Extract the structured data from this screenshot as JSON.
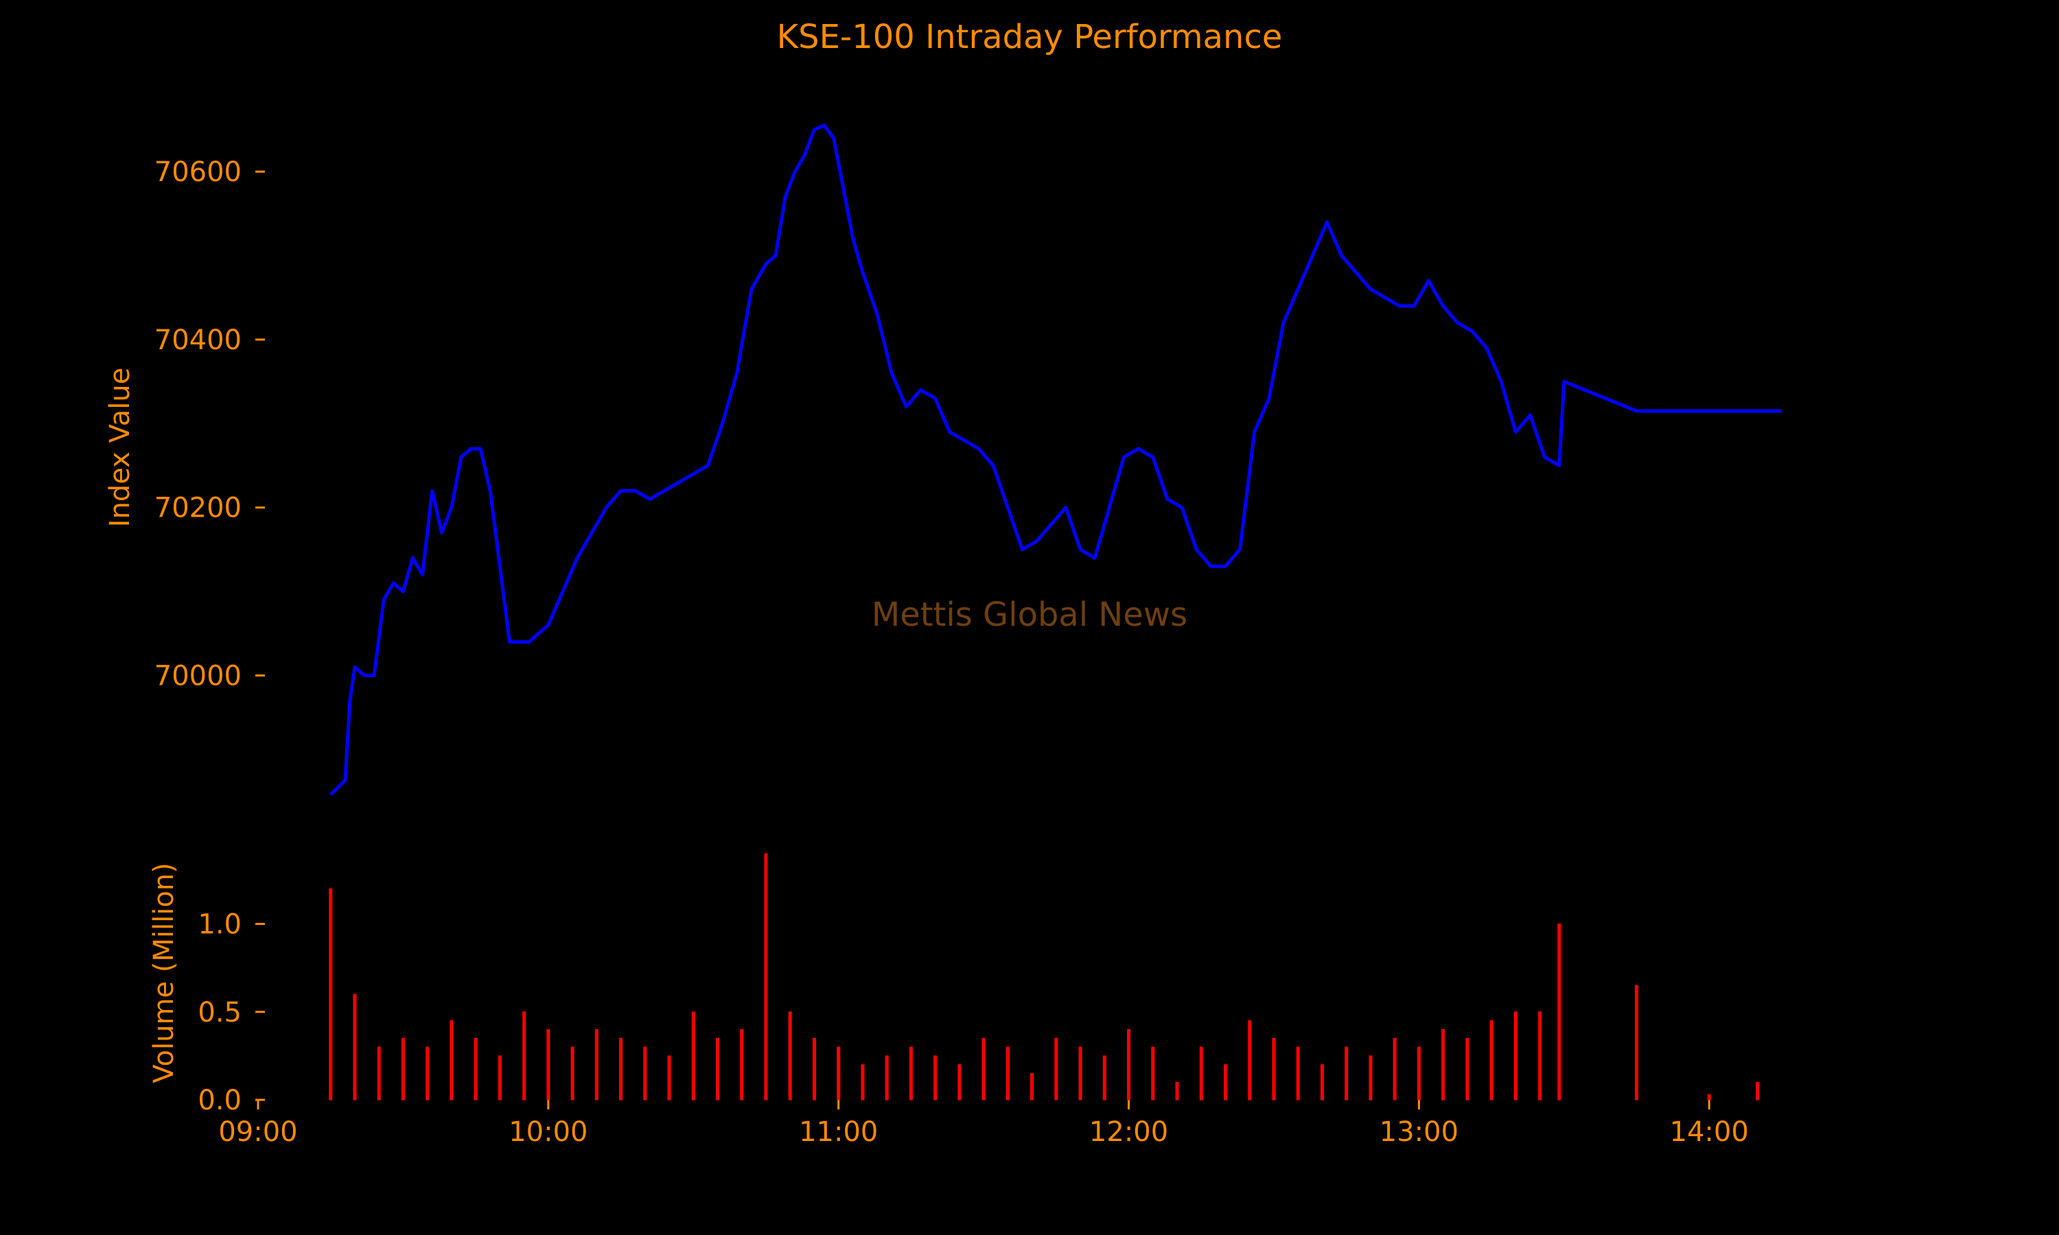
{
  "chart_data": {
    "type": "line",
    "title": "KSE-100 Intraday Performance",
    "watermark": "Mettis Global News",
    "colors": {
      "text": "#ff8c00",
      "price_line": "#0000ff",
      "volume_bars": "#ff0000",
      "background": "#000000"
    },
    "grid": false,
    "x_axis": {
      "type": "time",
      "range": [
        "09:00",
        "14:15"
      ],
      "tick_labels": [
        "09:00",
        "10:00",
        "11:00",
        "12:00",
        "13:00",
        "14:00"
      ]
    },
    "price_panel": {
      "ylabel": "Index Value",
      "ylim": [
        69855,
        70690
      ],
      "tick_values": [
        70000,
        70200,
        70400,
        70600
      ],
      "tick_labels": [
        "70000",
        "70200",
        "70400",
        "70600"
      ],
      "series": [
        {
          "x": [
            "09:15",
            "09:18",
            "09:19",
            "09:20",
            "09:22",
            "09:24",
            "09:26",
            "09:28",
            "09:30",
            "09:32",
            "09:34",
            "09:36",
            "09:38",
            "09:40",
            "09:42",
            "09:44",
            "09:46",
            "09:48",
            "09:50",
            "09:52",
            "09:54",
            "09:56",
            "09:58",
            "10:00",
            "10:03",
            "10:06",
            "10:09",
            "10:12",
            "10:15",
            "10:18",
            "10:21",
            "10:24",
            "10:27",
            "10:30",
            "10:33",
            "10:36",
            "10:39",
            "10:42",
            "10:45",
            "10:47",
            "10:49",
            "10:51",
            "10:53",
            "10:55",
            "10:57",
            "10:59",
            "11:01",
            "11:03",
            "11:05",
            "11:08",
            "11:11",
            "11:14",
            "11:17",
            "11:20",
            "11:23",
            "11:26",
            "11:29",
            "11:32",
            "11:35",
            "11:38",
            "11:41",
            "11:44",
            "11:47",
            "11:50",
            "11:53",
            "11:56",
            "11:59",
            "12:02",
            "12:05",
            "12:08",
            "12:11",
            "12:14",
            "12:17",
            "12:20",
            "12:23",
            "12:26",
            "12:29",
            "12:32",
            "12:35",
            "12:38",
            "12:41",
            "12:44",
            "12:47",
            "12:50",
            "12:53",
            "12:56",
            "12:59",
            "13:02",
            "13:05",
            "13:08",
            "13:11",
            "13:14",
            "13:17",
            "13:20",
            "13:23",
            "13:26",
            "13:29",
            "13:30",
            "13:45",
            "14:15"
          ],
          "y": [
            69858,
            69875,
            69970,
            70010,
            70000,
            70000,
            70090,
            70110,
            70100,
            70140,
            70120,
            70220,
            70170,
            70200,
            70260,
            70270,
            70270,
            70220,
            70130,
            70040,
            70040,
            70040,
            70050,
            70060,
            70100,
            70140,
            70170,
            70200,
            70220,
            70220,
            70210,
            70220,
            70230,
            70240,
            70250,
            70300,
            70360,
            70460,
            70490,
            70500,
            70570,
            70600,
            70620,
            70650,
            70655,
            70640,
            70580,
            70520,
            70480,
            70430,
            70360,
            70320,
            70340,
            70330,
            70290,
            70280,
            70270,
            70250,
            70200,
            70150,
            70160,
            70180,
            70200,
            70150,
            70140,
            70200,
            70260,
            70270,
            70260,
            70210,
            70200,
            70150,
            70130,
            70130,
            70150,
            70290,
            70330,
            70420,
            70460,
            70500,
            70540,
            70500,
            70480,
            70460,
            70450,
            70440,
            70440,
            70470,
            70440,
            70420,
            70410,
            70390,
            70350,
            70290,
            70310,
            70260,
            70250,
            70350,
            70315,
            70315
          ]
        }
      ]
    },
    "volume_panel": {
      "ylabel": "Volume (Million)",
      "ylim": [
        0.0,
        1.4
      ],
      "tick_values": [
        0.0,
        0.5,
        1.0
      ],
      "tick_labels": [
        "0.0",
        "0.5",
        "1.0"
      ],
      "series": [
        {
          "x": [
            "09:15",
            "09:20",
            "09:25",
            "09:30",
            "09:35",
            "09:40",
            "09:45",
            "09:50",
            "09:55",
            "10:00",
            "10:05",
            "10:10",
            "10:15",
            "10:20",
            "10:25",
            "10:30",
            "10:35",
            "10:40",
            "10:45",
            "10:50",
            "10:55",
            "11:00",
            "11:05",
            "11:10",
            "11:15",
            "11:20",
            "11:25",
            "11:30",
            "11:35",
            "11:40",
            "11:45",
            "11:50",
            "11:55",
            "12:00",
            "12:05",
            "12:10",
            "12:15",
            "12:20",
            "12:25",
            "12:30",
            "12:35",
            "12:40",
            "12:45",
            "12:50",
            "12:55",
            "13:00",
            "13:05",
            "13:10",
            "13:15",
            "13:20",
            "13:25",
            "13:29",
            "13:45",
            "14:00",
            "14:10"
          ],
          "values": [
            1.2,
            0.6,
            0.3,
            0.35,
            0.3,
            0.45,
            0.35,
            0.25,
            0.5,
            0.4,
            0.3,
            0.4,
            0.35,
            0.3,
            0.25,
            0.5,
            0.35,
            0.4,
            1.4,
            0.5,
            0.35,
            0.3,
            0.2,
            0.25,
            0.3,
            0.25,
            0.2,
            0.35,
            0.3,
            0.15,
            0.35,
            0.3,
            0.25,
            0.4,
            0.3,
            0.1,
            0.3,
            0.2,
            0.45,
            0.35,
            0.3,
            0.2,
            0.3,
            0.25,
            0.35,
            0.3,
            0.4,
            0.35,
            0.45,
            0.5,
            0.5,
            1.0,
            0.65,
            0.03,
            0.1
          ]
        }
      ]
    }
  }
}
